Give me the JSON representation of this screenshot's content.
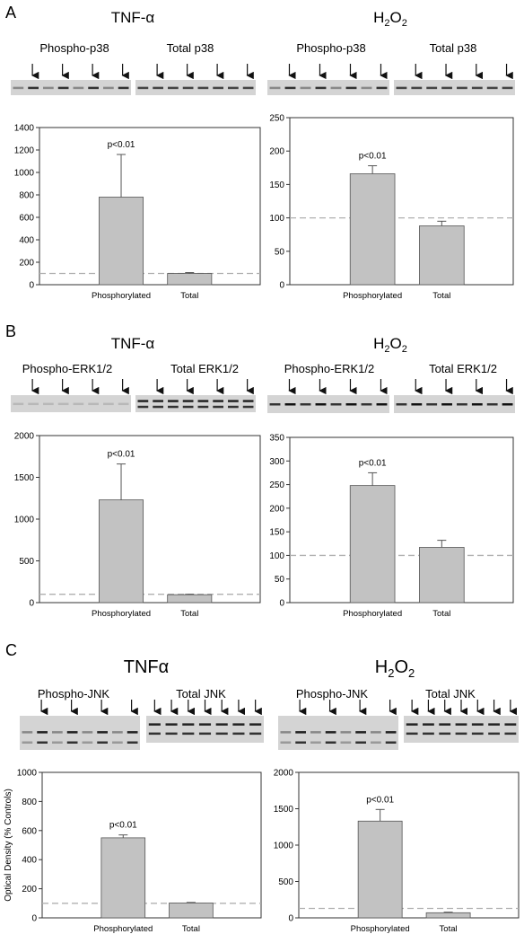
{
  "panels": [
    {
      "letter": "A",
      "blots": [
        {
          "title": "TNF-α",
          "labels": [
            "Phospho-p38",
            "Total p38"
          ],
          "sub": ""
        },
        {
          "title": "H",
          "sub": "2",
          "title_tail": "O",
          "sub2": "2",
          "labels": [
            "Phospho-p38",
            "Total p38"
          ]
        }
      ]
    },
    {
      "letter": "B",
      "blots": [
        {
          "title": "TNF-α",
          "labels": [
            "Phospho-ERK1/2",
            "Total ERK1/2"
          ],
          "sub": ""
        },
        {
          "title": "H",
          "sub": "2",
          "title_tail": "O",
          "sub2": "2",
          "labels": [
            "Phospho-ERK1/2",
            "Total ERK1/2"
          ]
        }
      ]
    },
    {
      "letter": "C",
      "blots": [
        {
          "title": "TNFα",
          "labels": [
            "Phospho-JNK",
            "Total JNK"
          ],
          "sub": ""
        },
        {
          "title": "H",
          "sub": "2",
          "title_tail": "O",
          "sub2": "2",
          "labels": [
            "Phospho-JNK",
            "Total JNK"
          ]
        }
      ]
    }
  ],
  "chart_data": [
    {
      "panel": "A",
      "condition": "TNF-α",
      "type": "bar",
      "categories": [
        "Phosphorylated",
        "Total"
      ],
      "values": [
        780,
        100
      ],
      "errors": [
        380,
        8
      ],
      "ylim": [
        0,
        1400
      ],
      "yticks": [
        0,
        200,
        400,
        600,
        800,
        1000,
        1200,
        1400
      ],
      "reference_line": 100,
      "annotation": "p<0.01",
      "ylabel": ""
    },
    {
      "panel": "A",
      "condition": "H2O2",
      "type": "bar",
      "categories": [
        "Phosphorylated",
        "Total"
      ],
      "values": [
        166,
        88
      ],
      "errors": [
        12,
        7
      ],
      "ylim": [
        0,
        250
      ],
      "yticks": [
        0,
        50,
        100,
        150,
        200,
        250
      ],
      "reference_line": 100,
      "annotation": "p<0.01",
      "ylabel": ""
    },
    {
      "panel": "B",
      "condition": "TNF-α",
      "type": "bar",
      "categories": [
        "Phosphorylated",
        "Total"
      ],
      "values": [
        1230,
        95
      ],
      "errors": [
        430,
        5
      ],
      "ylim": [
        0,
        2000
      ],
      "yticks": [
        0,
        500,
        1000,
        1500,
        2000
      ],
      "reference_line": 100,
      "annotation": "p<0.01",
      "ylabel": ""
    },
    {
      "panel": "B",
      "condition": "H2O2",
      "type": "bar",
      "categories": [
        "Phosphorylated",
        "Total"
      ],
      "values": [
        248,
        117
      ],
      "errors": [
        27,
        15
      ],
      "ylim": [
        0,
        350
      ],
      "yticks": [
        0,
        50,
        100,
        150,
        200,
        250,
        300,
        350
      ],
      "reference_line": 100,
      "annotation": "p<0.01",
      "ylabel": ""
    },
    {
      "panel": "C",
      "condition": "TNFα",
      "type": "bar",
      "categories": [
        "Phosphorylated",
        "Total"
      ],
      "values": [
        550,
        102
      ],
      "errors": [
        20,
        4
      ],
      "ylim": [
        0,
        1000
      ],
      "yticks": [
        0,
        200,
        400,
        600,
        800,
        1000
      ],
      "reference_line": 100,
      "annotation": "p<0.01",
      "ylabel": "Optical Density (% Controls)"
    },
    {
      "panel": "C",
      "condition": "H2O2",
      "type": "bar",
      "categories": [
        "Phosphorylated",
        "Total"
      ],
      "values": [
        1330,
        70
      ],
      "errors": [
        160,
        8
      ],
      "ylim": [
        0,
        2000
      ],
      "yticks": [
        0,
        500,
        1000,
        1500,
        2000
      ],
      "reference_line": 130,
      "annotation": "p<0.01",
      "ylabel": ""
    }
  ]
}
